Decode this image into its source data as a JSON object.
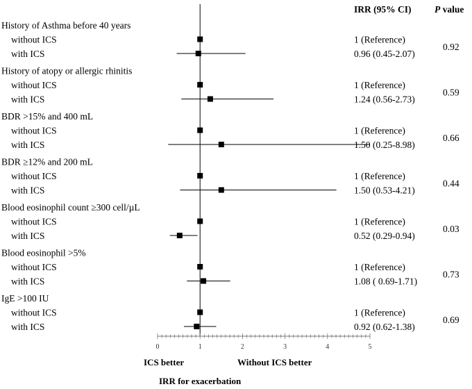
{
  "chart_data": {
    "type": "forest",
    "headers": {
      "irr": "IRR (95% CI)",
      "p_bold": "P",
      "p_rest": " value"
    },
    "x_axis": {
      "range": [
        0,
        5
      ],
      "ticks": [
        "0",
        "1",
        "2",
        "3",
        "4",
        "5"
      ],
      "reference_line": 1,
      "label": "IRR for exacerbation",
      "left_note": "ICS better",
      "right_note": "Without ICS better"
    },
    "groups": [
      {
        "label": "History of Asthma before 40 years",
        "p_value": "0.92",
        "rows": [
          {
            "label": "without ICS",
            "irr": 1,
            "ci": null,
            "text": "1 (Reference)"
          },
          {
            "label": "with ICS",
            "irr": 0.96,
            "ci": [
              0.45,
              2.07
            ],
            "text": "0.96 (0.45-2.07)"
          }
        ]
      },
      {
        "label": "History of atopy or allergic rhinitis",
        "p_value": "0.59",
        "rows": [
          {
            "label": "without ICS",
            "irr": 1,
            "ci": null,
            "text": "1 (Reference)"
          },
          {
            "label": "with ICS",
            "irr": 1.24,
            "ci": [
              0.56,
              2.73
            ],
            "text": "1.24 (0.56-2.73)"
          }
        ]
      },
      {
        "label": "BDR >15% and 400 mL",
        "p_value": "0.66",
        "rows": [
          {
            "label": "without ICS",
            "irr": 1,
            "ci": null,
            "text": "1 (Reference)"
          },
          {
            "label": "with ICS",
            "irr": 1.5,
            "ci": [
              0.25,
              8.98
            ],
            "text": "1.50 (0.25-8.98)"
          }
        ]
      },
      {
        "label": "BDR ≥12% and 200 mL",
        "p_value": "0.44",
        "rows": [
          {
            "label": "without ICS",
            "irr": 1,
            "ci": null,
            "text": "1 (Reference)"
          },
          {
            "label": "with ICS",
            "irr": 1.5,
            "ci": [
              0.53,
              4.21
            ],
            "text": "1.50 (0.53-4.21)"
          }
        ]
      },
      {
        "label": "Blood eosinophil count ≥300 cell/µL",
        "p_value": "0.03",
        "rows": [
          {
            "label": "without ICS",
            "irr": 1,
            "ci": null,
            "text": "1 (Reference)"
          },
          {
            "label": "with ICS",
            "irr": 0.52,
            "ci": [
              0.29,
              0.94
            ],
            "text": "0.52 (0.29-0.94)"
          }
        ]
      },
      {
        "label": "Blood eosinophil >5%",
        "p_value": "0.73",
        "rows": [
          {
            "label": "without ICS",
            "irr": 1,
            "ci": null,
            "text": "1 (Reference)"
          },
          {
            "label": "with ICS",
            "irr": 1.08,
            "ci": [
              0.69,
              1.71
            ],
            "text": "1.08 ( 0.69-1.71)"
          }
        ]
      },
      {
        "label": "IgE >100 IU",
        "p_value": "0.69",
        "rows": [
          {
            "label": "without ICS",
            "irr": 1,
            "ci": null,
            "text": "1 (Reference)"
          },
          {
            "label": "with ICS",
            "irr": 0.92,
            "ci": [
              0.62,
              1.38
            ],
            "text": "0.92 (0.62-1.38)"
          }
        ]
      }
    ]
  }
}
